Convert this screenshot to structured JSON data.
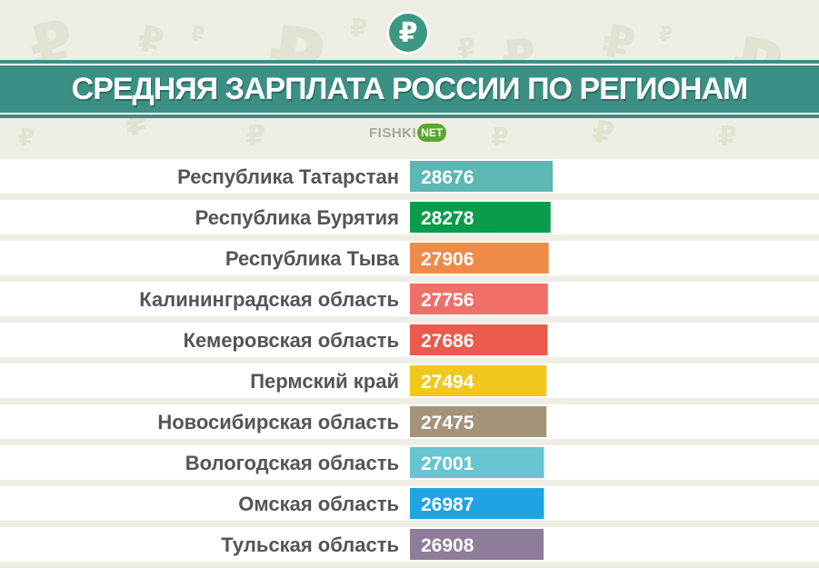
{
  "header": {
    "title": "СРЕДНЯЯ ЗАРПЛАТА РОССИИ ПО РЕГИОНАМ",
    "logo_symbol": "₽",
    "brand_text": "FISHKI",
    "brand_badge": "NET"
  },
  "chart_data": {
    "type": "bar",
    "orientation": "horizontal",
    "title": "СРЕДНЯЯ ЗАРПЛАТА РОССИИ ПО РЕГИОНАМ",
    "categories": [
      "Республика Татарстан",
      "Республика Бурятия",
      "Республика Тыва",
      "Калининградская область",
      "Кемеровская область",
      "Пермский край",
      "Новосибирская область",
      "Вологодская область",
      "Омская область",
      "Тульская область"
    ],
    "values": [
      28676,
      28278,
      27906,
      27756,
      27686,
      27494,
      27475,
      27001,
      26987,
      26908
    ],
    "colors": [
      "#5db7b5",
      "#0a9c4a",
      "#f08a4b",
      "#ef6f69",
      "#ec5a4d",
      "#f2c81b",
      "#a4937a",
      "#67c4d0",
      "#1ea4e3",
      "#8f7c9b"
    ],
    "xlabel": "",
    "ylabel": "",
    "grid": false,
    "legend": "none"
  }
}
